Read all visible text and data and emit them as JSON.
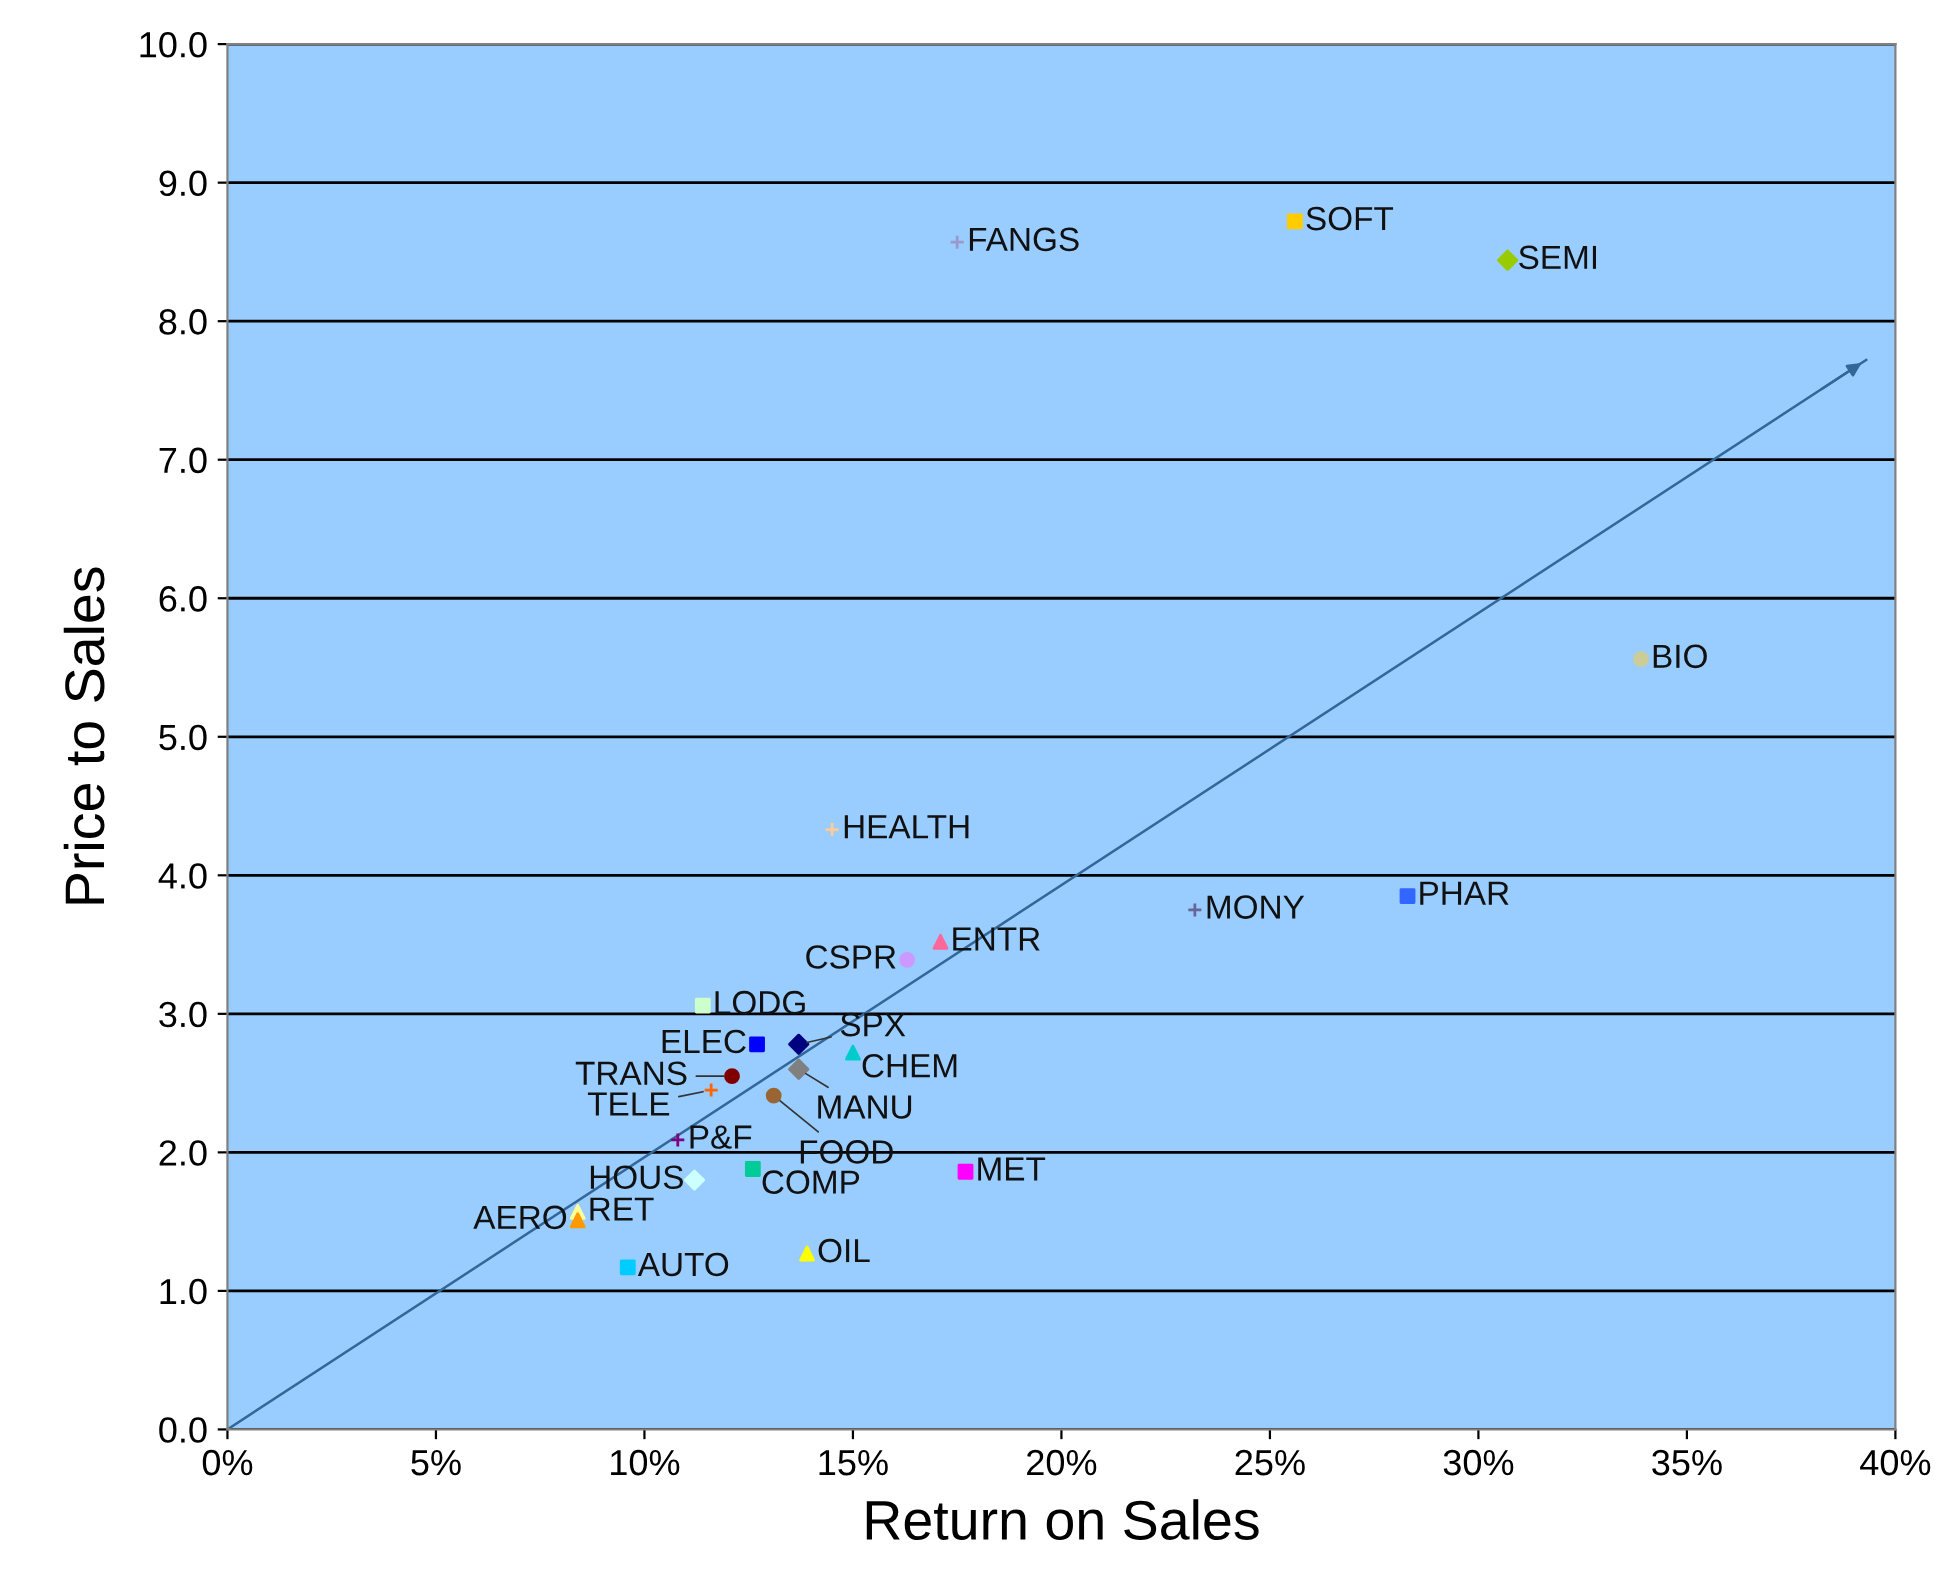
{
  "chart_data": {
    "type": "scatter",
    "xlabel": "Return on Sales",
    "ylabel": "Price to Sales",
    "xlim": [
      0,
      40
    ],
    "ylim": [
      0,
      10
    ],
    "xticks": [
      {
        "value": 0,
        "label": "0%"
      },
      {
        "value": 5,
        "label": "5%"
      },
      {
        "value": 10,
        "label": "10%"
      },
      {
        "value": 15,
        "label": "15%"
      },
      {
        "value": 20,
        "label": "20%"
      },
      {
        "value": 25,
        "label": "25%"
      },
      {
        "value": 30,
        "label": "30%"
      },
      {
        "value": 35,
        "label": "35%"
      },
      {
        "value": 40,
        "label": "40%"
      }
    ],
    "yticks": [
      {
        "value": 0,
        "label": "0.0"
      },
      {
        "value": 1,
        "label": "1.0"
      },
      {
        "value": 2,
        "label": "2.0"
      },
      {
        "value": 3,
        "label": "3.0"
      },
      {
        "value": 4,
        "label": "4.0"
      },
      {
        "value": 5,
        "label": "5.0"
      },
      {
        "value": 6,
        "label": "6.0"
      },
      {
        "value": 7,
        "label": "7.0"
      },
      {
        "value": 8,
        "label": "8.0"
      },
      {
        "value": 9,
        "label": "9.0"
      },
      {
        "value": 10,
        "label": "10.0"
      }
    ],
    "grid": "y",
    "legend": false,
    "series": [
      {
        "name": "FANGS",
        "color": "#9999cc",
        "marker": "cross",
        "x": [
          17.5
        ],
        "values": [
          8.57
        ]
      },
      {
        "name": "SOFT",
        "color": "#ffcc00",
        "marker": "square",
        "x": [
          25.6
        ],
        "values": [
          8.72
        ]
      },
      {
        "name": "SEMI",
        "color": "#99cc00",
        "marker": "diamond",
        "x": [
          30.7
        ],
        "values": [
          8.44
        ]
      },
      {
        "name": "BIO",
        "color": "#cccc99",
        "marker": "circle",
        "x": [
          33.9
        ],
        "values": [
          5.56
        ]
      },
      {
        "name": "HEALTH",
        "color": "#ffcc99",
        "marker": "cross",
        "x": [
          14.5
        ],
        "values": [
          4.33
        ]
      },
      {
        "name": "MONY",
        "color": "#666699",
        "marker": "cross",
        "x": [
          23.2
        ],
        "values": [
          3.75
        ]
      },
      {
        "name": "PHAR",
        "color": "#3366ff",
        "marker": "square",
        "x": [
          28.3
        ],
        "values": [
          3.85
        ]
      },
      {
        "name": "ENTR",
        "color": "#ff6699",
        "marker": "triangle",
        "x": [
          17.1
        ],
        "values": [
          3.52
        ]
      },
      {
        "name": "CSPR",
        "color": "#cc99ff",
        "marker": "circle",
        "x": [
          16.3
        ],
        "values": [
          3.39
        ]
      },
      {
        "name": "LODG",
        "color": "#ccffcc",
        "marker": "square",
        "x": [
          11.4
        ],
        "values": [
          3.06
        ]
      },
      {
        "name": "ELEC",
        "color": "#0000ff",
        "marker": "square",
        "x": [
          12.7
        ],
        "values": [
          2.78
        ]
      },
      {
        "name": "SPX",
        "color": "#000080",
        "marker": "diamond",
        "x": [
          13.7
        ],
        "values": [
          2.78
        ]
      },
      {
        "name": "CHEM",
        "color": "#00cccc",
        "marker": "triangle",
        "x": [
          15.0
        ],
        "values": [
          2.72
        ]
      },
      {
        "name": "TRANS",
        "color": "#800000",
        "marker": "circle",
        "x": [
          12.1
        ],
        "values": [
          2.55
        ]
      },
      {
        "name": "MANU",
        "color": "#808080",
        "marker": "diamond",
        "x": [
          13.7
        ],
        "values": [
          2.6
        ]
      },
      {
        "name": "TELE",
        "color": "#ff6600",
        "marker": "cross",
        "x": [
          11.6
        ],
        "values": [
          2.45
        ]
      },
      {
        "name": "FOOD",
        "color": "#996633",
        "marker": "circle",
        "x": [
          13.1
        ],
        "values": [
          2.41
        ]
      },
      {
        "name": "P&F",
        "color": "#800080",
        "marker": "cross",
        "x": [
          10.8
        ],
        "values": [
          2.09
        ]
      },
      {
        "name": "HOUS",
        "color": "#ccffff",
        "marker": "diamond",
        "x": [
          11.2
        ],
        "values": [
          1.8
        ]
      },
      {
        "name": "COMP",
        "color": "#00cc99",
        "marker": "square",
        "x": [
          12.6
        ],
        "values": [
          1.88
        ]
      },
      {
        "name": "MET",
        "color": "#ff00ff",
        "marker": "square",
        "x": [
          17.7
        ],
        "values": [
          1.86
        ]
      },
      {
        "name": "RET",
        "color": "#ffff99",
        "marker": "triangle",
        "x": [
          8.4
        ],
        "values": [
          1.57
        ]
      },
      {
        "name": "AERO",
        "color": "#ff9900",
        "marker": "triangle",
        "x": [
          8.4
        ],
        "values": [
          1.51
        ]
      },
      {
        "name": "AUTO",
        "color": "#00ccff",
        "marker": "square",
        "x": [
          9.6
        ],
        "values": [
          1.17
        ]
      },
      {
        "name": "OIL",
        "color": "#ffff00",
        "marker": "triangle",
        "x": [
          13.9
        ],
        "values": [
          1.27
        ]
      },
      {
        "type": "line",
        "color": "#336699",
        "marker": "none",
        "x": [
          0,
          39.3
        ],
        "values": [
          0,
          7.72
        ]
      }
    ]
  }
}
